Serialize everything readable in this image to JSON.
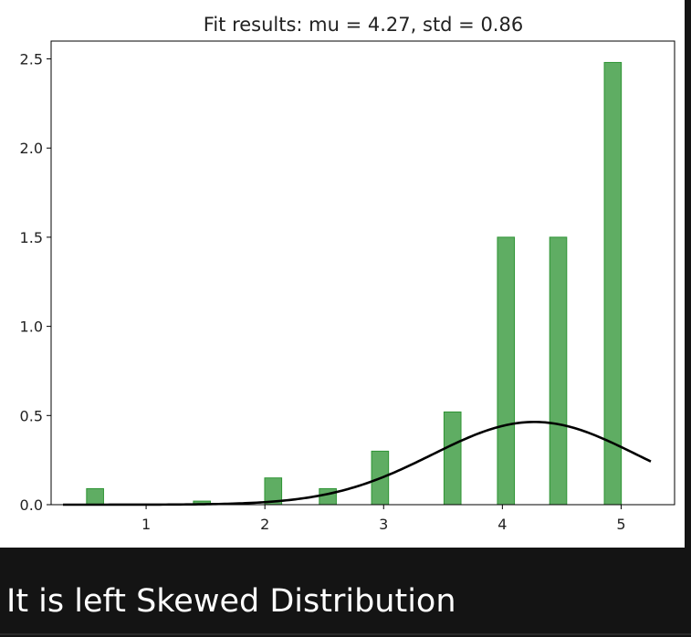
{
  "chart_data": {
    "type": "bar",
    "title": "Fit results: mu = 4.27,  std = 0.86",
    "xlabel": "",
    "ylabel": "",
    "xlim": [
      0.2,
      5.45
    ],
    "ylim": [
      0,
      2.6
    ],
    "xticks": [
      1,
      2,
      3,
      4,
      5
    ],
    "yticks": [
      0.0,
      0.5,
      1.0,
      1.5,
      2.0,
      2.5
    ],
    "ytick_labels": [
      "0.0",
      "0.5",
      "1.0",
      "1.5",
      "2.0",
      "2.5"
    ],
    "bar_width": 0.143,
    "bars": [
      {
        "x": 0.57,
        "value": 0.09
      },
      {
        "x": 1.47,
        "value": 0.02
      },
      {
        "x": 2.07,
        "value": 0.15
      },
      {
        "x": 2.53,
        "value": 0.09
      },
      {
        "x": 2.97,
        "value": 0.3
      },
      {
        "x": 3.58,
        "value": 0.52
      },
      {
        "x": 4.03,
        "value": 1.5
      },
      {
        "x": 4.47,
        "value": 1.5
      },
      {
        "x": 4.93,
        "value": 2.48
      }
    ],
    "fit_curve": {
      "type": "normal_pdf",
      "mu": 4.27,
      "std": 0.86,
      "x_range": [
        0.3,
        5.25
      ]
    },
    "grid": false,
    "colors": {
      "bar_fill": "#5fad63",
      "bar_edge": "#2e9434",
      "curve": "#000000"
    }
  },
  "caption": "It is left Skewed Distribution"
}
